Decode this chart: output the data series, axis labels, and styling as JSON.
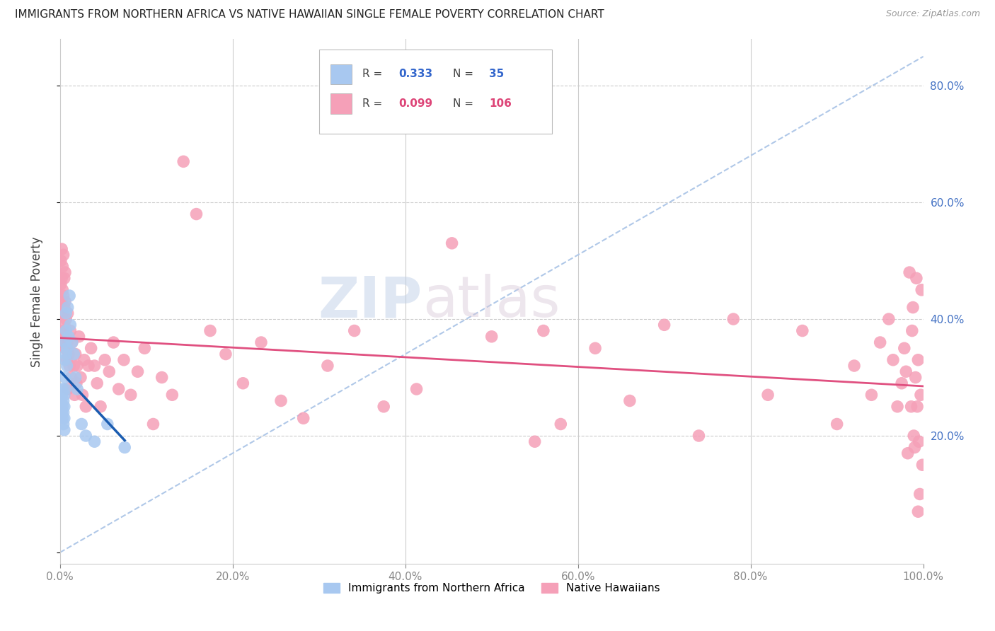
{
  "title": "IMMIGRANTS FROM NORTHERN AFRICA VS NATIVE HAWAIIAN SINGLE FEMALE POVERTY CORRELATION CHART",
  "source": "Source: ZipAtlas.com",
  "ylabel": "Single Female Poverty",
  "R_blue": 0.333,
  "N_blue": 35,
  "R_pink": 0.099,
  "N_pink": 106,
  "blue_color": "#A8C8F0",
  "blue_line_color": "#1A5CB0",
  "pink_color": "#F5A0B8",
  "pink_line_color": "#E05080",
  "dashed_line_color": "#B0C8E8",
  "watermark_zip": "ZIP",
  "watermark_atlas": "atlas",
  "xlim": [
    0.0,
    1.0
  ],
  "ylim": [
    -0.02,
    0.88
  ],
  "xticks": [
    0.0,
    0.2,
    0.4,
    0.6,
    0.8,
    1.0
  ],
  "yticks_right": [
    0.2,
    0.4,
    0.6,
    0.8
  ],
  "xticklabels": [
    "0.0%",
    "20.0%",
    "40.0%",
    "60.0%",
    "80.0%",
    "100.0%"
  ],
  "yticklabels_right": [
    "20.0%",
    "40.0%",
    "60.0%",
    "80.0%"
  ],
  "blue_x": [
    0.001,
    0.002,
    0.002,
    0.003,
    0.003,
    0.003,
    0.004,
    0.004,
    0.004,
    0.005,
    0.005,
    0.005,
    0.005,
    0.006,
    0.006,
    0.006,
    0.006,
    0.007,
    0.007,
    0.007,
    0.008,
    0.008,
    0.009,
    0.01,
    0.011,
    0.012,
    0.014,
    0.016,
    0.018,
    0.02,
    0.025,
    0.03,
    0.04,
    0.055,
    0.075
  ],
  "blue_y": [
    0.26,
    0.27,
    0.24,
    0.25,
    0.23,
    0.28,
    0.22,
    0.24,
    0.26,
    0.21,
    0.23,
    0.25,
    0.27,
    0.28,
    0.3,
    0.33,
    0.36,
    0.34,
    0.38,
    0.41,
    0.32,
    0.35,
    0.42,
    0.37,
    0.44,
    0.39,
    0.36,
    0.34,
    0.3,
    0.28,
    0.22,
    0.2,
    0.19,
    0.22,
    0.18
  ],
  "pink_x": [
    0.001,
    0.001,
    0.002,
    0.002,
    0.002,
    0.003,
    0.003,
    0.003,
    0.004,
    0.004,
    0.004,
    0.004,
    0.005,
    0.005,
    0.005,
    0.006,
    0.006,
    0.006,
    0.007,
    0.007,
    0.008,
    0.008,
    0.009,
    0.009,
    0.01,
    0.011,
    0.012,
    0.013,
    0.014,
    0.016,
    0.017,
    0.018,
    0.019,
    0.02,
    0.022,
    0.024,
    0.026,
    0.028,
    0.03,
    0.033,
    0.036,
    0.04,
    0.043,
    0.047,
    0.052,
    0.057,
    0.062,
    0.068,
    0.074,
    0.082,
    0.09,
    0.098,
    0.108,
    0.118,
    0.13,
    0.143,
    0.158,
    0.174,
    0.192,
    0.212,
    0.233,
    0.256,
    0.282,
    0.31,
    0.341,
    0.375,
    0.413,
    0.454,
    0.5,
    0.55,
    0.56,
    0.58,
    0.62,
    0.66,
    0.7,
    0.74,
    0.78,
    0.82,
    0.86,
    0.9,
    0.92,
    0.94,
    0.95,
    0.96,
    0.965,
    0.97,
    0.975,
    0.978,
    0.98,
    0.982,
    0.984,
    0.986,
    0.987,
    0.988,
    0.989,
    0.99,
    0.991,
    0.992,
    0.993,
    0.994,
    0.994,
    0.995,
    0.996,
    0.997,
    0.998,
    0.999
  ],
  "pink_y": [
    0.5,
    0.46,
    0.52,
    0.47,
    0.43,
    0.49,
    0.45,
    0.41,
    0.51,
    0.38,
    0.44,
    0.36,
    0.47,
    0.42,
    0.39,
    0.43,
    0.35,
    0.48,
    0.37,
    0.4,
    0.36,
    0.33,
    0.41,
    0.28,
    0.34,
    0.32,
    0.38,
    0.3,
    0.36,
    0.32,
    0.27,
    0.34,
    0.29,
    0.32,
    0.37,
    0.3,
    0.27,
    0.33,
    0.25,
    0.32,
    0.35,
    0.32,
    0.29,
    0.25,
    0.33,
    0.31,
    0.36,
    0.28,
    0.33,
    0.27,
    0.31,
    0.35,
    0.22,
    0.3,
    0.27,
    0.67,
    0.58,
    0.38,
    0.34,
    0.29,
    0.36,
    0.26,
    0.23,
    0.32,
    0.38,
    0.25,
    0.28,
    0.53,
    0.37,
    0.19,
    0.38,
    0.22,
    0.35,
    0.26,
    0.39,
    0.2,
    0.4,
    0.27,
    0.38,
    0.22,
    0.32,
    0.27,
    0.36,
    0.4,
    0.33,
    0.25,
    0.29,
    0.35,
    0.31,
    0.17,
    0.48,
    0.25,
    0.38,
    0.42,
    0.2,
    0.18,
    0.3,
    0.47,
    0.25,
    0.07,
    0.33,
    0.19,
    0.1,
    0.27,
    0.45,
    0.15
  ]
}
